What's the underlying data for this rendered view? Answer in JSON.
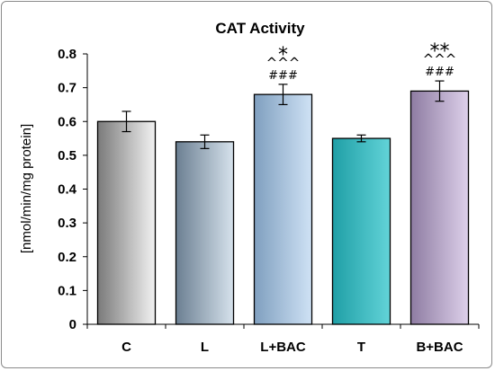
{
  "chart_data": {
    "type": "bar",
    "title": "CAT Activity",
    "xlabel": "",
    "ylabel": "[nmol/min/mg protein]",
    "categories": [
      "C",
      "L",
      "L+BAC",
      "T",
      "B+BAC"
    ],
    "values": [
      0.6,
      0.54,
      0.68,
      0.55,
      0.69
    ],
    "errors": [
      0.03,
      0.02,
      0.03,
      0.01,
      0.03
    ],
    "ylim": [
      0,
      0.8
    ],
    "yticks": [
      "0",
      "0.1",
      "0.2",
      "0.3",
      "0.4",
      "0.5",
      "0.6",
      "0.7",
      "0.8"
    ],
    "grid": false,
    "annotations": [
      {
        "category": "L+BAC",
        "lines": [
          "*",
          "^^^",
          "###"
        ]
      },
      {
        "category": "B+BAC",
        "lines": [
          "**",
          "^^^",
          "###"
        ]
      }
    ],
    "colors": {
      "C": [
        "#7a7a7a",
        "#f2f2f2"
      ],
      "L": [
        "#6b7f92",
        "#d6e2ec"
      ],
      "L+BAC": [
        "#7f9fbf",
        "#cfe2f5"
      ],
      "T": [
        "#1f9fa6",
        "#62d3d8"
      ],
      "B+BAC": [
        "#8e7ca2",
        "#ddd0ea"
      ]
    }
  }
}
